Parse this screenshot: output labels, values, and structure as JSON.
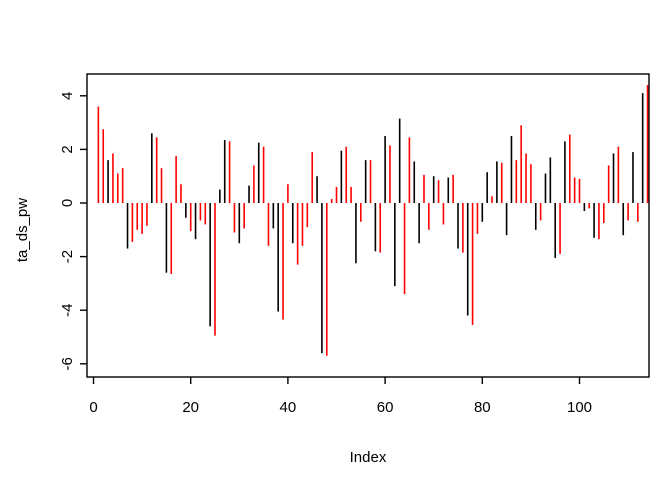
{
  "window": {
    "background": "#ffffff"
  },
  "chart_data": {
    "type": "bar",
    "subtype": "vertical-needle-lines (R plot type='h')",
    "title": "",
    "xlabel": "Index",
    "ylabel": "ta_ds_pw",
    "xticks": [
      0,
      20,
      40,
      60,
      80,
      100
    ],
    "yticks": [
      -6,
      -4,
      -2,
      0,
      2,
      4
    ],
    "xlim": [
      -3.5,
      118
    ],
    "ylim": [
      -6.3,
      4.6
    ],
    "grid": false,
    "legend": "none",
    "baseline": 0,
    "palette": {
      "black": "#000000",
      "red": "#ff0000",
      "frame": "#000000"
    },
    "x": [
      1,
      2,
      3,
      4,
      5,
      6,
      7,
      8,
      9,
      10,
      11,
      12,
      13,
      14,
      15,
      16,
      17,
      18,
      19,
      20,
      21,
      22,
      23,
      24,
      25,
      26,
      27,
      28,
      29,
      30,
      31,
      32,
      33,
      34,
      35,
      36,
      37,
      38,
      39,
      40,
      41,
      42,
      43,
      44,
      45,
      46,
      47,
      48,
      49,
      50,
      51,
      52,
      53,
      54,
      55,
      56,
      57,
      58,
      59,
      60,
      61,
      62,
      63,
      64,
      65,
      66,
      67,
      68,
      69,
      70,
      71,
      72,
      73,
      74,
      75,
      76,
      77,
      78,
      79,
      80,
      81,
      82,
      83,
      84,
      85,
      86,
      87,
      88,
      89,
      90,
      91,
      92,
      93,
      94,
      95,
      96,
      97,
      98,
      99,
      100,
      101,
      102,
      103,
      104,
      105,
      106,
      107,
      108,
      109,
      110,
      111,
      112,
      113,
      114
    ],
    "values": [
      3.6,
      2.75,
      1.6,
      1.85,
      1.1,
      1.3,
      -1.7,
      -1.45,
      -1.0,
      -1.15,
      -0.85,
      2.6,
      2.45,
      1.3,
      -2.6,
      -2.65,
      1.75,
      0.7,
      -0.55,
      -1.05,
      -1.35,
      -0.65,
      -0.8,
      -4.6,
      -4.95,
      0.5,
      2.35,
      2.3,
      -1.1,
      -1.5,
      -0.95,
      0.65,
      1.4,
      2.25,
      2.1,
      -1.6,
      -0.95,
      -4.05,
      -4.35,
      0.7,
      -1.5,
      -2.3,
      -1.6,
      -0.9,
      1.9,
      1.0,
      -5.6,
      -5.7,
      0.15,
      0.6,
      1.95,
      2.1,
      0.6,
      -2.25,
      -0.7,
      1.6,
      1.6,
      -1.8,
      -1.85,
      2.5,
      2.15,
      -3.1,
      3.15,
      -3.4,
      2.45,
      1.55,
      -1.5,
      1.05,
      -1.0,
      1.0,
      0.85,
      -0.8,
      0.95,
      1.05,
      -1.7,
      -1.85,
      -4.2,
      -4.55,
      -1.15,
      -0.7,
      1.15,
      0.25,
      1.55,
      1.5,
      -1.2,
      2.5,
      1.6,
      2.9,
      1.85,
      1.45,
      -1.0,
      -0.65,
      1.1,
      1.7,
      -2.05,
      -1.9,
      2.3,
      2.55,
      0.95,
      0.9,
      -0.3,
      -0.2,
      -1.3,
      -1.35,
      -0.75,
      1.4,
      1.85,
      2.1,
      -1.2,
      -0.65,
      1.9,
      -0.7,
      4.1,
      4.4
    ],
    "colors": [
      "red",
      "red",
      "black",
      "red",
      "red",
      "red",
      "black",
      "red",
      "red",
      "red",
      "red",
      "black",
      "red",
      "red",
      "black",
      "red",
      "red",
      "red",
      "black",
      "red",
      "black",
      "red",
      "red",
      "black",
      "red",
      "black",
      "black",
      "red",
      "red",
      "black",
      "red",
      "black",
      "red",
      "black",
      "red",
      "red",
      "black",
      "black",
      "red",
      "red",
      "black",
      "red",
      "red",
      "red",
      "red",
      "black",
      "black",
      "red",
      "red",
      "red",
      "black",
      "red",
      "red",
      "black",
      "red",
      "black",
      "red",
      "black",
      "red",
      "black",
      "red",
      "black",
      "black",
      "red",
      "red",
      "black",
      "black",
      "red",
      "red",
      "black",
      "red",
      "red",
      "black",
      "red",
      "black",
      "red",
      "black",
      "red",
      "red",
      "black",
      "black",
      "red",
      "black",
      "red",
      "black",
      "black",
      "red",
      "red",
      "red",
      "red",
      "black",
      "red",
      "black",
      "black",
      "black",
      "red",
      "black",
      "red",
      "red",
      "red",
      "black",
      "red",
      "black",
      "red",
      "red",
      "red",
      "black",
      "red",
      "black",
      "red",
      "black",
      "red",
      "black",
      "red"
    ]
  }
}
